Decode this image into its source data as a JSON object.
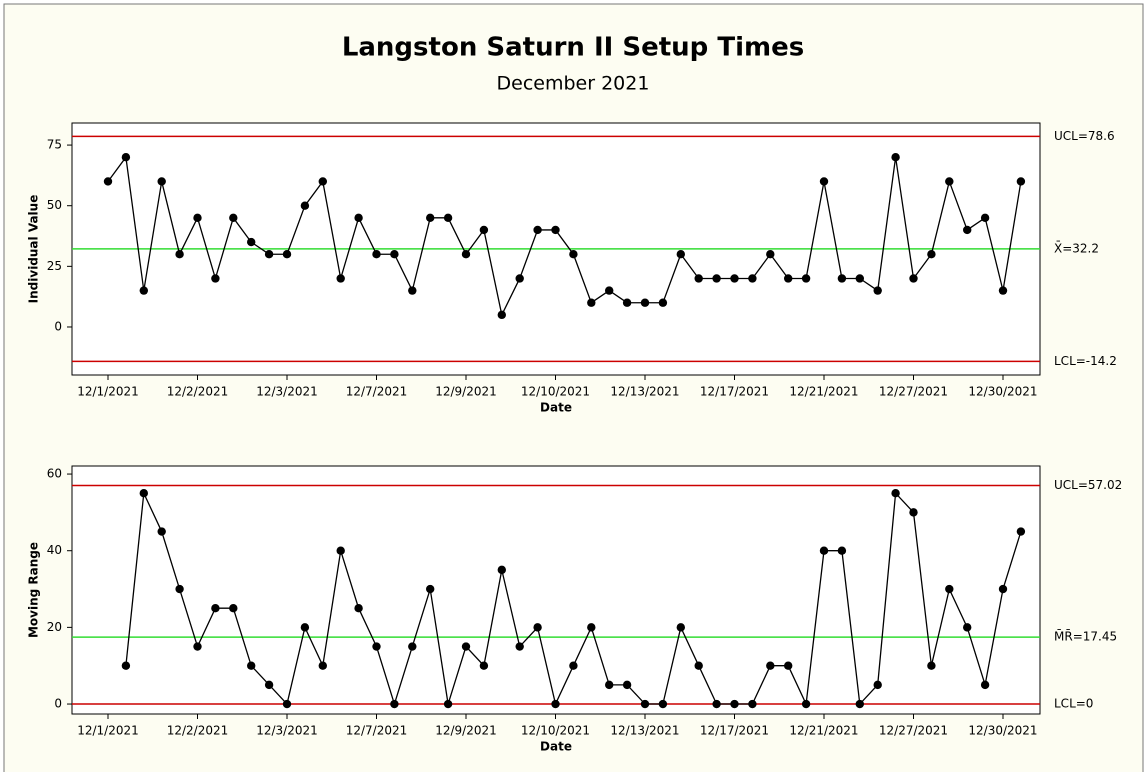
{
  "chart_data": [
    {
      "type": "line",
      "title": "Langston Saturn II Setup Times",
      "subtitle": "December 2021",
      "y_label": "Individual Value",
      "x_label": "Date",
      "categories": [
        "12/1/2021",
        null,
        null,
        null,
        null,
        "12/2/2021",
        null,
        null,
        null,
        null,
        "12/3/2021",
        null,
        null,
        null,
        null,
        "12/7/2021",
        null,
        null,
        null,
        null,
        "12/9/2021",
        null,
        null,
        null,
        null,
        "12/10/2021",
        null,
        null,
        null,
        null,
        "12/13/2021",
        null,
        null,
        null,
        null,
        "12/17/2021",
        null,
        null,
        null,
        null,
        "12/21/2021",
        null,
        null,
        null,
        null,
        "12/27/2021",
        null,
        null,
        null,
        null,
        "12/30/2021",
        null
      ],
      "series": [
        {
          "color": "#000000",
          "values": [
            60,
            70,
            15,
            60,
            30,
            45,
            20,
            45,
            35,
            30,
            30,
            50,
            60,
            20,
            45,
            30,
            30,
            15,
            45,
            45,
            30,
            40,
            5,
            20,
            40,
            40,
            30,
            10,
            15,
            10,
            10,
            10,
            30,
            20,
            20,
            20,
            20,
            30,
            20,
            20,
            60,
            20,
            20,
            15,
            70,
            20,
            30,
            60,
            40,
            45,
            15,
            60
          ]
        }
      ],
      "ylim": [
        -19.8,
        84.1
      ],
      "yticks": [
        0,
        25,
        50,
        75
      ],
      "control_lines": [
        {
          "label": "UCL=78.6",
          "value": 78.6,
          "color": "#cc0000"
        },
        {
          "label": "X̄=32.2",
          "value": 32.2,
          "color": "#33dd33"
        },
        {
          "label": "LCL=-14.2",
          "value": -14.2,
          "color": "#cc0000"
        }
      ]
    },
    {
      "type": "line",
      "y_label": "Moving Range",
      "x_label": "Date",
      "categories": [
        "12/1/2021",
        null,
        null,
        null,
        null,
        "12/2/2021",
        null,
        null,
        null,
        null,
        "12/3/2021",
        null,
        null,
        null,
        null,
        "12/7/2021",
        null,
        null,
        null,
        null,
        "12/9/2021",
        null,
        null,
        null,
        null,
        "12/10/2021",
        null,
        null,
        null,
        null,
        "12/13/2021",
        null,
        null,
        null,
        null,
        "12/17/2021",
        null,
        null,
        null,
        null,
        "12/21/2021",
        null,
        null,
        null,
        null,
        "12/27/2021",
        null,
        null,
        null,
        null,
        "12/30/2021",
        null
      ],
      "series": [
        {
          "color": "#000000",
          "values": [
            null,
            10,
            55,
            45,
            30,
            15,
            25,
            25,
            10,
            5,
            0,
            20,
            10,
            40,
            25,
            15,
            0,
            15,
            30,
            0,
            15,
            10,
            35,
            15,
            20,
            0,
            10,
            20,
            5,
            5,
            0,
            0,
            20,
            10,
            0,
            0,
            0,
            10,
            10,
            0,
            40,
            40,
            0,
            5,
            55,
            50,
            10,
            30,
            20,
            5,
            30,
            45
          ]
        }
      ],
      "ylim": [
        -2.6,
        62.1
      ],
      "yticks": [
        0,
        20,
        40,
        60
      ],
      "control_lines": [
        {
          "label": "UCL=57.02",
          "value": 57.02,
          "color": "#cc0000"
        },
        {
          "label": "M̄R̄=17.45",
          "value": 17.45,
          "color": "#33dd33"
        },
        {
          "label": "LCL=0",
          "value": 0,
          "color": "#cc0000"
        }
      ]
    }
  ]
}
